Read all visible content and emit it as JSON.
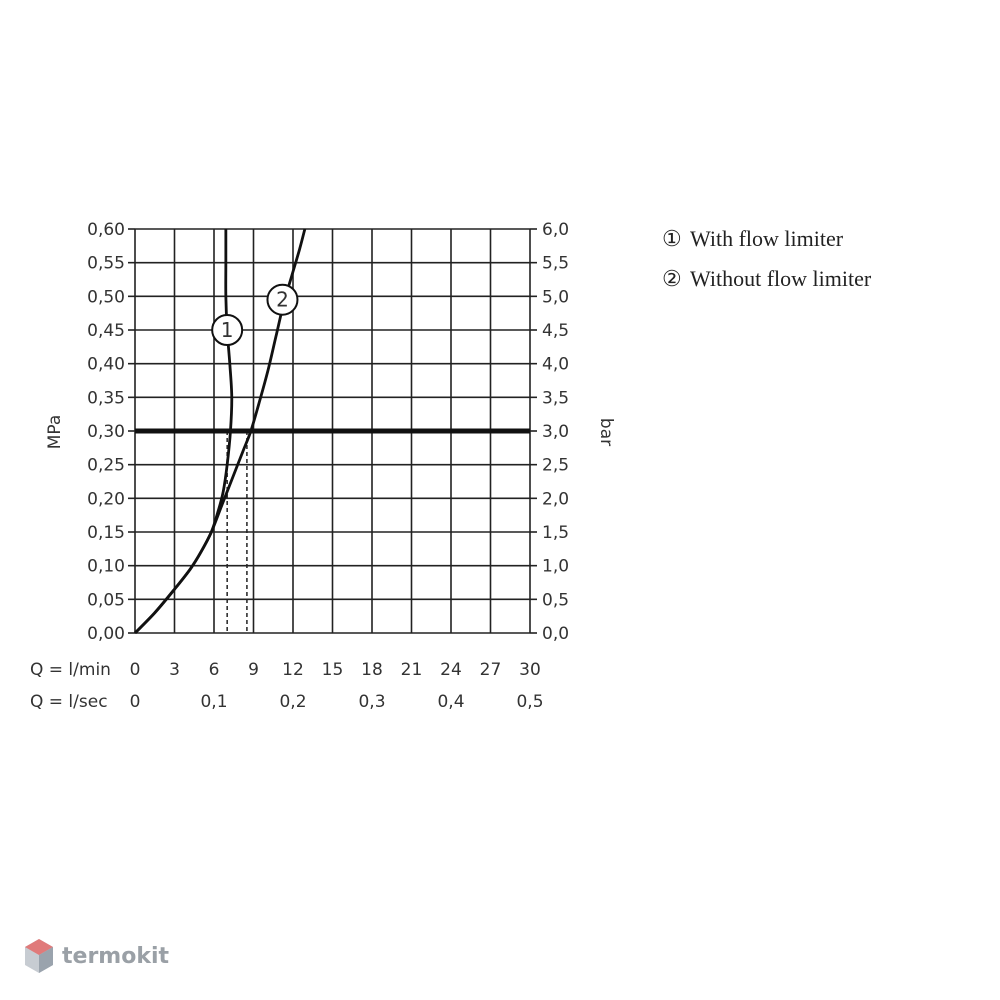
{
  "chart_data": {
    "type": "line",
    "y_left": {
      "label": "MPa",
      "ticks": [
        "0,00",
        "0,05",
        "0,10",
        "0,15",
        "0,20",
        "0,25",
        "0,30",
        "0,35",
        "0,40",
        "0,45",
        "0,50",
        "0,55",
        "0,60"
      ],
      "range": [
        0,
        0.6
      ]
    },
    "y_right": {
      "label": "bar",
      "ticks": [
        "0,0",
        "0,5",
        "1,0",
        "1,5",
        "2,0",
        "2,5",
        "3,0",
        "3,5",
        "4,0",
        "4,5",
        "5,0",
        "5,5",
        "6,0"
      ],
      "range": [
        0,
        6
      ]
    },
    "x_lmin": {
      "label": "Q = l/min",
      "ticks": [
        "0",
        "3",
        "6",
        "9",
        "12",
        "15",
        "18",
        "21",
        "24",
        "27",
        "30"
      ],
      "range": [
        0,
        30
      ]
    },
    "x_lsec": {
      "label": "Q = l/sec",
      "ticks": [
        {
          "v": 0,
          "t": "0"
        },
        {
          "v": 6,
          "t": "0,1"
        },
        {
          "v": 12,
          "t": "0,2"
        },
        {
          "v": 18,
          "t": "0,3"
        },
        {
          "v": 24,
          "t": "0,4"
        },
        {
          "v": 30,
          "t": "0,5"
        }
      ]
    },
    "grid": true,
    "reference_line": {
      "y": 0.3
    },
    "series": [
      {
        "name": "With flow limiter",
        "marker": "1",
        "marker_at": [
          7.0,
          0.45
        ],
        "points": [
          [
            0,
            0
          ],
          [
            1.5,
            0.03
          ],
          [
            3,
            0.065
          ],
          [
            4.2,
            0.095
          ],
          [
            5.0,
            0.12
          ],
          [
            5.8,
            0.15
          ],
          [
            6.3,
            0.18
          ],
          [
            6.7,
            0.21
          ],
          [
            7.0,
            0.25
          ],
          [
            7.25,
            0.3
          ],
          [
            7.35,
            0.35
          ],
          [
            7.2,
            0.4
          ],
          [
            7.0,
            0.45
          ],
          [
            6.9,
            0.5
          ],
          [
            6.9,
            0.55
          ],
          [
            6.9,
            0.6
          ]
        ]
      },
      {
        "name": "Without flow limiter",
        "marker": "2",
        "marker_at": [
          11.2,
          0.495
        ],
        "points": [
          [
            0,
            0
          ],
          [
            1.5,
            0.03
          ],
          [
            3,
            0.065
          ],
          [
            4.2,
            0.095
          ],
          [
            5.0,
            0.12
          ],
          [
            5.8,
            0.15
          ],
          [
            6.6,
            0.19
          ],
          [
            7.4,
            0.23
          ],
          [
            8.2,
            0.27
          ],
          [
            8.8,
            0.3
          ],
          [
            9.4,
            0.34
          ],
          [
            10.1,
            0.39
          ],
          [
            10.7,
            0.44
          ],
          [
            11.3,
            0.49
          ],
          [
            11.9,
            0.53
          ],
          [
            12.5,
            0.57
          ],
          [
            12.9,
            0.6
          ]
        ]
      }
    ],
    "readings": [
      {
        "x": 7.0,
        "y": 0.3
      },
      {
        "x": 8.5,
        "y": 0.3
      }
    ]
  },
  "legend": [
    {
      "marker": "①",
      "label": "With flow limiter"
    },
    {
      "marker": "②",
      "label": "Without flow limiter"
    }
  ],
  "watermark": {
    "text": "termokit"
  }
}
